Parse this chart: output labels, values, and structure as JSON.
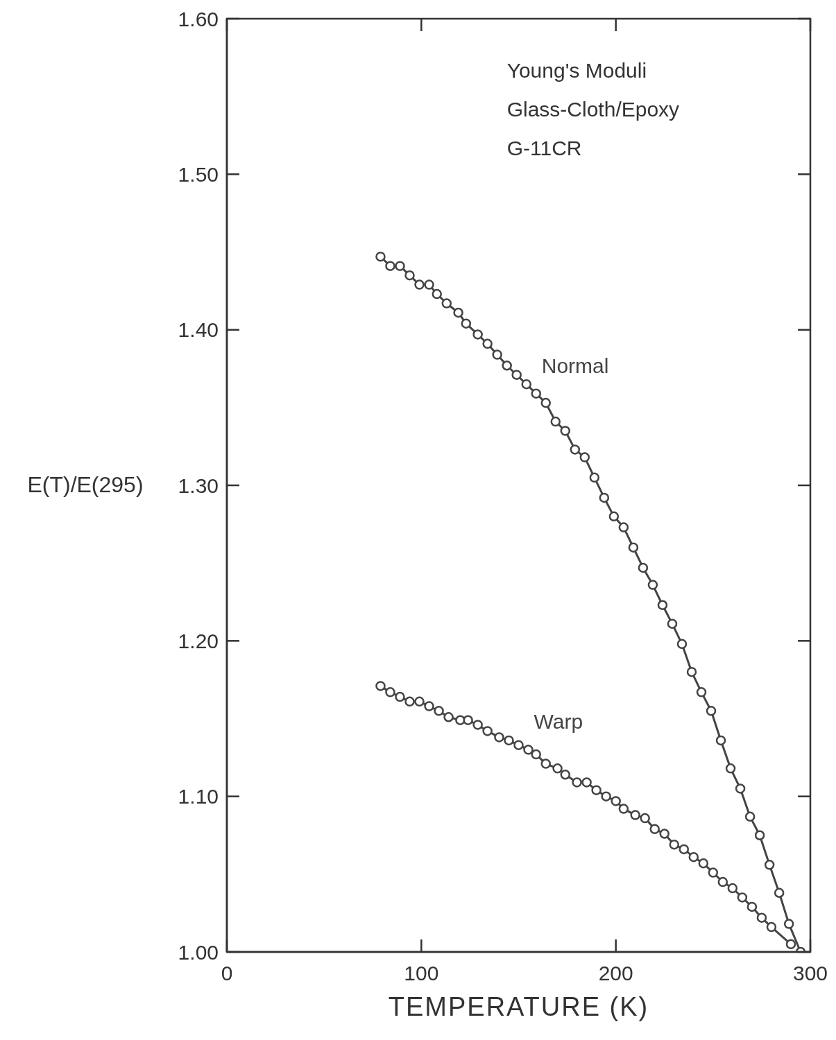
{
  "chart_data": {
    "type": "line",
    "xlabel": "TEMPERATURE (K)",
    "ylabel": "E(T)/E(295)",
    "annotations": [
      "Young's Moduli",
      "Glass-Cloth/Epoxy",
      "G-11CR"
    ],
    "xlim": [
      0,
      300
    ],
    "xticks": [
      0,
      100,
      200,
      300
    ],
    "ylim": [
      1.0,
      1.6
    ],
    "yticks": [
      {
        "value": 1.0,
        "label": "1.00"
      },
      {
        "value": 1.1,
        "label": "1.10"
      },
      {
        "value": 1.2,
        "label": "1.20"
      },
      {
        "value": 1.3,
        "label": "1.30"
      },
      {
        "value": 1.4,
        "label": "1.40"
      },
      {
        "value": 1.5,
        "label": "1.50"
      },
      {
        "value": 1.6,
        "label": "1.60"
      }
    ],
    "grid": false,
    "legend": false,
    "marker": "circle",
    "line_style": "solid",
    "series": [
      {
        "name": "Normal",
        "color": "#444444",
        "x": [
          79,
          84,
          89,
          94,
          99,
          104,
          108,
          113,
          119,
          123,
          129,
          134,
          139,
          144,
          149,
          154,
          159,
          164,
          169,
          174,
          179,
          184,
          189,
          194,
          199,
          204,
          209,
          214,
          219,
          224,
          229,
          234,
          239,
          244,
          249,
          254,
          259,
          264,
          269,
          274,
          279,
          284,
          289,
          295
        ],
        "values": [
          1.447,
          1.441,
          1.441,
          1.435,
          1.429,
          1.429,
          1.423,
          1.417,
          1.411,
          1.404,
          1.397,
          1.391,
          1.384,
          1.377,
          1.371,
          1.365,
          1.359,
          1.353,
          1.341,
          1.335,
          1.323,
          1.318,
          1.305,
          1.292,
          1.28,
          1.273,
          1.26,
          1.247,
          1.236,
          1.223,
          1.211,
          1.198,
          1.18,
          1.167,
          1.155,
          1.136,
          1.118,
          1.105,
          1.087,
          1.075,
          1.056,
          1.038,
          1.018,
          1.0
        ]
      },
      {
        "name": "Warp",
        "color": "#444444",
        "x": [
          79,
          84,
          89,
          94,
          99,
          104,
          109,
          114,
          120,
          124,
          129,
          134,
          140,
          145,
          150,
          155,
          159,
          164,
          170,
          174,
          180,
          185,
          190,
          195,
          200,
          204,
          210,
          215,
          220,
          225,
          230,
          235,
          240,
          245,
          250,
          255,
          260,
          265,
          270,
          275,
          280,
          290
        ],
        "values": [
          1.171,
          1.167,
          1.164,
          1.161,
          1.161,
          1.158,
          1.155,
          1.151,
          1.149,
          1.149,
          1.146,
          1.142,
          1.138,
          1.136,
          1.133,
          1.13,
          1.127,
          1.121,
          1.118,
          1.114,
          1.109,
          1.109,
          1.104,
          1.1,
          1.097,
          1.092,
          1.088,
          1.086,
          1.079,
          1.076,
          1.069,
          1.066,
          1.061,
          1.057,
          1.051,
          1.045,
          1.041,
          1.035,
          1.029,
          1.022,
          1.016,
          1.005
        ]
      }
    ]
  }
}
